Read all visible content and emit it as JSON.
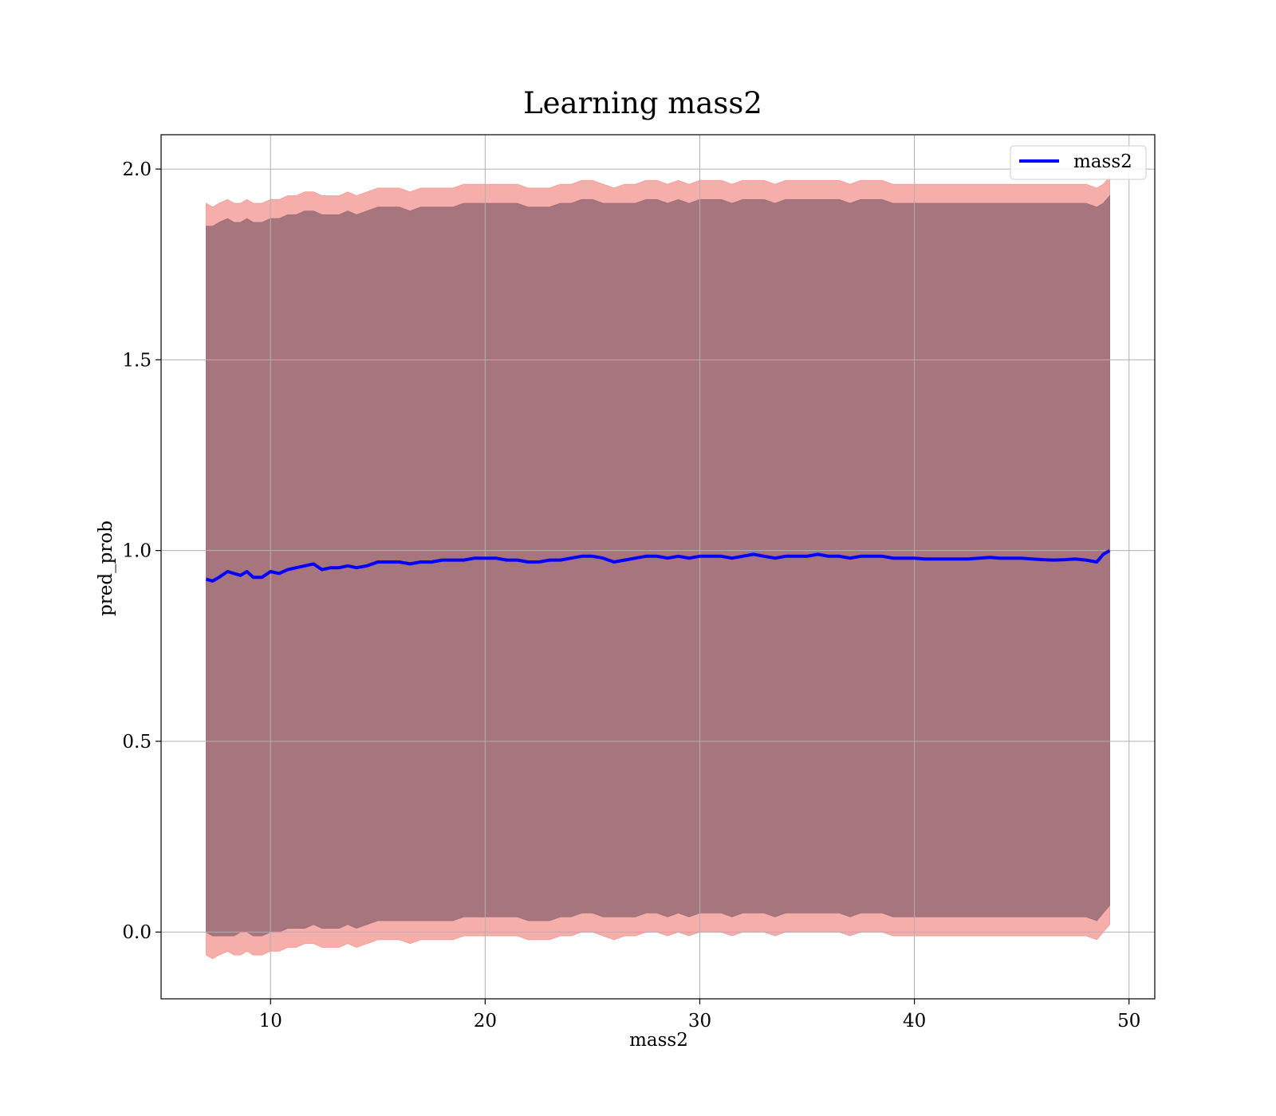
{
  "chart_data": {
    "type": "line",
    "title": "Learning mass2",
    "xlabel": "mass2",
    "ylabel": "pred_prob",
    "xlim": [
      4.9,
      51.2
    ],
    "ylim": [
      -0.175,
      2.09
    ],
    "xticks": [
      10,
      20,
      30,
      40,
      50
    ],
    "yticks": [
      0.0,
      0.5,
      1.0,
      1.5,
      2.0
    ],
    "xtick_labels": [
      "10",
      "20",
      "30",
      "40",
      "50"
    ],
    "ytick_labels": [
      "0.0",
      "0.5",
      "1.0",
      "1.5",
      "2.0"
    ],
    "grid": true,
    "legend_position": "upper-right",
    "series": [
      {
        "name": "mass2",
        "color": "#0000ff",
        "x": [
          7.0,
          7.3,
          7.6,
          8.0,
          8.3,
          8.6,
          8.9,
          9.2,
          9.6,
          10.0,
          10.4,
          10.8,
          11.2,
          11.6,
          12.0,
          12.4,
          12.8,
          13.2,
          13.6,
          14.0,
          14.5,
          15.0,
          15.5,
          16.0,
          16.5,
          17.0,
          17.5,
          18.0,
          18.5,
          19.0,
          19.5,
          20.0,
          20.5,
          21.0,
          21.5,
          22.0,
          22.5,
          23.0,
          23.5,
          24.0,
          24.5,
          25.0,
          25.5,
          26.0,
          26.5,
          27.0,
          27.5,
          28.0,
          28.5,
          29.0,
          29.5,
          30.0,
          30.5,
          31.0,
          31.5,
          32.0,
          32.5,
          33.0,
          33.5,
          34.0,
          34.5,
          35.0,
          35.5,
          36.0,
          36.5,
          37.0,
          37.5,
          38.0,
          38.5,
          39.0,
          39.5,
          40.0,
          40.5,
          41.0,
          41.5,
          42.0,
          42.5,
          43.0,
          43.5,
          44.0,
          44.5,
          45.0,
          45.5,
          46.0,
          46.5,
          47.0,
          47.5,
          48.0,
          48.5,
          48.8,
          49.1
        ],
        "y": [
          0.925,
          0.92,
          0.93,
          0.945,
          0.94,
          0.935,
          0.945,
          0.93,
          0.93,
          0.945,
          0.94,
          0.95,
          0.955,
          0.96,
          0.965,
          0.95,
          0.955,
          0.955,
          0.96,
          0.955,
          0.96,
          0.97,
          0.97,
          0.97,
          0.965,
          0.97,
          0.97,
          0.975,
          0.975,
          0.975,
          0.98,
          0.98,
          0.98,
          0.975,
          0.975,
          0.97,
          0.97,
          0.975,
          0.975,
          0.98,
          0.985,
          0.985,
          0.98,
          0.97,
          0.975,
          0.98,
          0.985,
          0.985,
          0.98,
          0.985,
          0.98,
          0.985,
          0.985,
          0.985,
          0.98,
          0.985,
          0.99,
          0.985,
          0.98,
          0.985,
          0.985,
          0.985,
          0.99,
          0.985,
          0.985,
          0.98,
          0.985,
          0.985,
          0.985,
          0.98,
          0.98,
          0.98,
          0.978,
          0.978,
          0.978,
          0.978,
          0.978,
          0.98,
          0.982,
          0.98,
          0.98,
          0.98,
          0.978,
          0.976,
          0.975,
          0.976,
          0.978,
          0.975,
          0.97,
          0.99,
          1.0
        ],
        "band_inner": {
          "color": "#a07078",
          "lower": [
            0.0,
            -0.01,
            -0.01,
            -0.01,
            -0.01,
            0.0,
            0.0,
            -0.01,
            -0.01,
            0.0,
            0.0,
            0.01,
            0.01,
            0.01,
            0.02,
            0.01,
            0.01,
            0.01,
            0.02,
            0.01,
            0.02,
            0.03,
            0.03,
            0.03,
            0.03,
            0.03,
            0.03,
            0.03,
            0.03,
            0.04,
            0.04,
            0.04,
            0.04,
            0.04,
            0.04,
            0.03,
            0.03,
            0.03,
            0.04,
            0.04,
            0.05,
            0.05,
            0.04,
            0.04,
            0.04,
            0.04,
            0.05,
            0.05,
            0.04,
            0.05,
            0.04,
            0.05,
            0.05,
            0.05,
            0.04,
            0.05,
            0.05,
            0.05,
            0.04,
            0.05,
            0.05,
            0.05,
            0.05,
            0.05,
            0.05,
            0.04,
            0.05,
            0.05,
            0.05,
            0.04,
            0.04,
            0.04,
            0.04,
            0.04,
            0.04,
            0.04,
            0.04,
            0.04,
            0.04,
            0.04,
            0.04,
            0.04,
            0.04,
            0.04,
            0.04,
            0.04,
            0.04,
            0.04,
            0.03,
            0.05,
            0.07
          ],
          "upper": [
            1.85,
            1.85,
            1.86,
            1.87,
            1.86,
            1.86,
            1.87,
            1.86,
            1.86,
            1.87,
            1.87,
            1.88,
            1.88,
            1.89,
            1.89,
            1.88,
            1.88,
            1.88,
            1.89,
            1.88,
            1.89,
            1.9,
            1.9,
            1.9,
            1.89,
            1.9,
            1.9,
            1.9,
            1.9,
            1.91,
            1.91,
            1.91,
            1.91,
            1.91,
            1.91,
            1.9,
            1.9,
            1.9,
            1.91,
            1.91,
            1.92,
            1.92,
            1.91,
            1.91,
            1.91,
            1.91,
            1.92,
            1.92,
            1.91,
            1.92,
            1.91,
            1.92,
            1.92,
            1.92,
            1.91,
            1.92,
            1.92,
            1.92,
            1.91,
            1.92,
            1.92,
            1.92,
            1.92,
            1.92,
            1.92,
            1.91,
            1.92,
            1.92,
            1.92,
            1.91,
            1.91,
            1.91,
            1.91,
            1.91,
            1.91,
            1.91,
            1.91,
            1.91,
            1.91,
            1.91,
            1.91,
            1.91,
            1.91,
            1.91,
            1.91,
            1.91,
            1.91,
            1.91,
            1.9,
            1.91,
            1.93
          ]
        },
        "band_outer": {
          "color": "#f4a09c",
          "lower": [
            -0.06,
            -0.07,
            -0.06,
            -0.05,
            -0.06,
            -0.06,
            -0.05,
            -0.06,
            -0.06,
            -0.05,
            -0.05,
            -0.04,
            -0.04,
            -0.03,
            -0.03,
            -0.04,
            -0.04,
            -0.04,
            -0.03,
            -0.04,
            -0.03,
            -0.02,
            -0.02,
            -0.02,
            -0.03,
            -0.02,
            -0.02,
            -0.02,
            -0.02,
            -0.01,
            -0.01,
            -0.01,
            -0.01,
            -0.01,
            -0.01,
            -0.02,
            -0.02,
            -0.02,
            -0.01,
            -0.01,
            0.0,
            0.0,
            -0.01,
            -0.02,
            -0.01,
            -0.01,
            0.0,
            0.0,
            -0.01,
            0.0,
            -0.01,
            0.0,
            0.0,
            0.0,
            -0.01,
            0.0,
            0.0,
            0.0,
            -0.01,
            0.0,
            0.0,
            0.0,
            0.0,
            0.0,
            0.0,
            -0.01,
            0.0,
            0.0,
            0.0,
            -0.01,
            -0.01,
            -0.01,
            -0.01,
            -0.01,
            -0.01,
            -0.01,
            -0.01,
            -0.01,
            -0.01,
            -0.01,
            -0.01,
            -0.01,
            -0.01,
            -0.01,
            -0.01,
            -0.01,
            -0.01,
            -0.01,
            -0.02,
            0.0,
            0.02
          ],
          "upper": [
            1.91,
            1.9,
            1.91,
            1.92,
            1.91,
            1.91,
            1.92,
            1.91,
            1.91,
            1.92,
            1.92,
            1.93,
            1.93,
            1.94,
            1.94,
            1.93,
            1.93,
            1.93,
            1.94,
            1.93,
            1.94,
            1.95,
            1.95,
            1.95,
            1.94,
            1.95,
            1.95,
            1.95,
            1.95,
            1.96,
            1.96,
            1.96,
            1.96,
            1.96,
            1.96,
            1.95,
            1.95,
            1.95,
            1.96,
            1.96,
            1.97,
            1.97,
            1.96,
            1.95,
            1.96,
            1.96,
            1.97,
            1.97,
            1.96,
            1.97,
            1.96,
            1.97,
            1.97,
            1.97,
            1.96,
            1.97,
            1.97,
            1.97,
            1.96,
            1.97,
            1.97,
            1.97,
            1.97,
            1.97,
            1.97,
            1.96,
            1.97,
            1.97,
            1.97,
            1.96,
            1.96,
            1.96,
            1.96,
            1.96,
            1.96,
            1.96,
            1.96,
            1.96,
            1.96,
            1.96,
            1.96,
            1.96,
            1.96,
            1.96,
            1.96,
            1.96,
            1.96,
            1.96,
            1.95,
            1.96,
            1.98
          ]
        }
      }
    ]
  },
  "colors": {
    "line": "#0000ff",
    "band_inner": "#a07078",
    "band_outer": "#f4a09c",
    "grid": "#b0b0b0"
  }
}
